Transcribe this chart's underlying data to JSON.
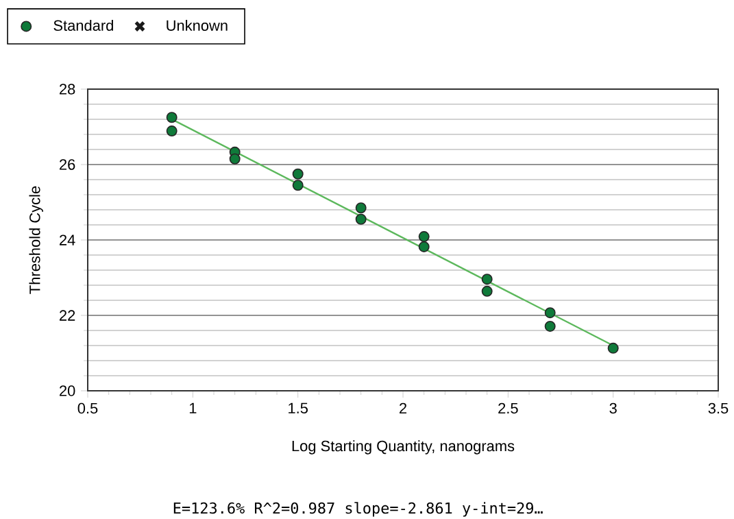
{
  "chart_data": {
    "type": "scatter",
    "xlabel": "Log Starting Quantity, nanograms",
    "ylabel": "Threshold Cycle",
    "xlim": [
      0.5,
      3.5
    ],
    "xticks": [
      0.5,
      1,
      1.5,
      2,
      2.5,
      3,
      3.5
    ],
    "ylim": [
      20,
      28
    ],
    "yticks": [
      20,
      22,
      24,
      26,
      28
    ],
    "grid": "y",
    "legend": "top left",
    "series": [
      {
        "name": "Standard",
        "marker": "circle",
        "color": "#0f7a3a",
        "x": [
          0.9,
          0.9,
          1.2,
          1.2,
          1.5,
          1.5,
          1.8,
          1.8,
          2.1,
          2.1,
          2.4,
          2.4,
          2.7,
          2.7,
          3.0
        ],
        "values": [
          27.25,
          26.89,
          26.33,
          26.15,
          25.75,
          25.45,
          24.85,
          24.55,
          24.09,
          23.82,
          22.96,
          22.64,
          22.07,
          21.71,
          21.13
        ]
      },
      {
        "name": "Unknown",
        "type": "scatter",
        "marker": "cross",
        "color": "#1a1a1a"
      },
      {
        "type": "line",
        "color": "#5cb85c",
        "x": [
          0.9,
          3.0
        ],
        "values": [
          27.2,
          21.2
        ]
      }
    ],
    "annotations": [
      "E=123.6% R^2=0.987 slope=-2.861 y-int=29…"
    ]
  }
}
